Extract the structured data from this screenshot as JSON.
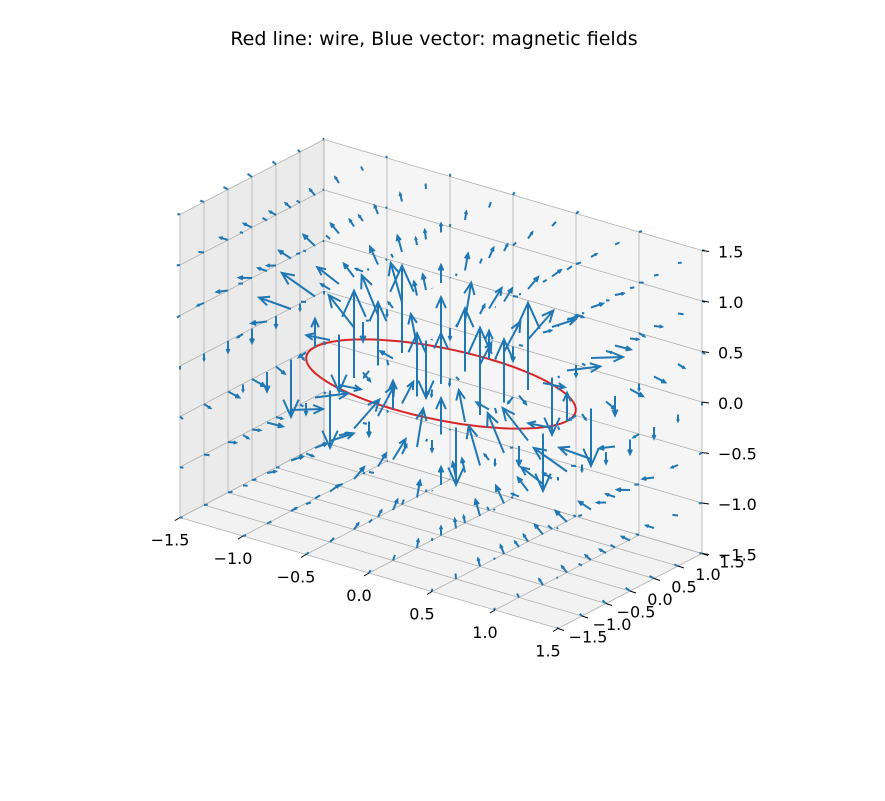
{
  "chart_data": {
    "type": "quiver3d",
    "title": "Red line: wire, Blue vector: magnetic fields",
    "xlabel": "",
    "ylabel": "",
    "zlabel": "",
    "xlim": [
      -1.5,
      1.5
    ],
    "ylim": [
      -1.5,
      1.5
    ],
    "zlim": [
      -1.5,
      1.5
    ],
    "xticks": [
      "−1.5",
      "−1.0",
      "−0.5",
      "0.0",
      "0.5",
      "1.0",
      "1.5"
    ],
    "yticks": [
      "−1.5",
      "−1.0",
      "−0.5",
      "0.0",
      "0.5",
      "1.0",
      "1.5"
    ],
    "zticks": [
      "−1.5",
      "−1.0",
      "−0.5",
      "0.0",
      "0.5",
      "1.0",
      "1.5"
    ],
    "grid": true,
    "series": [
      {
        "name": "wire",
        "shape": "circle",
        "radius": 1.0,
        "center": [
          0,
          0,
          0
        ],
        "plane": "z=0",
        "color": "#d62728"
      },
      {
        "name": "magnetic fields",
        "shape": "vector field on 7x7x7 grid, spacing 0.5, from -1.5 to 1.5",
        "color": "#1f77b4"
      }
    ],
    "colors": {
      "wire": "#d62728",
      "field": "#1f77b4",
      "pane": "#f2f2f2",
      "grid": "#b0b0b0"
    }
  }
}
